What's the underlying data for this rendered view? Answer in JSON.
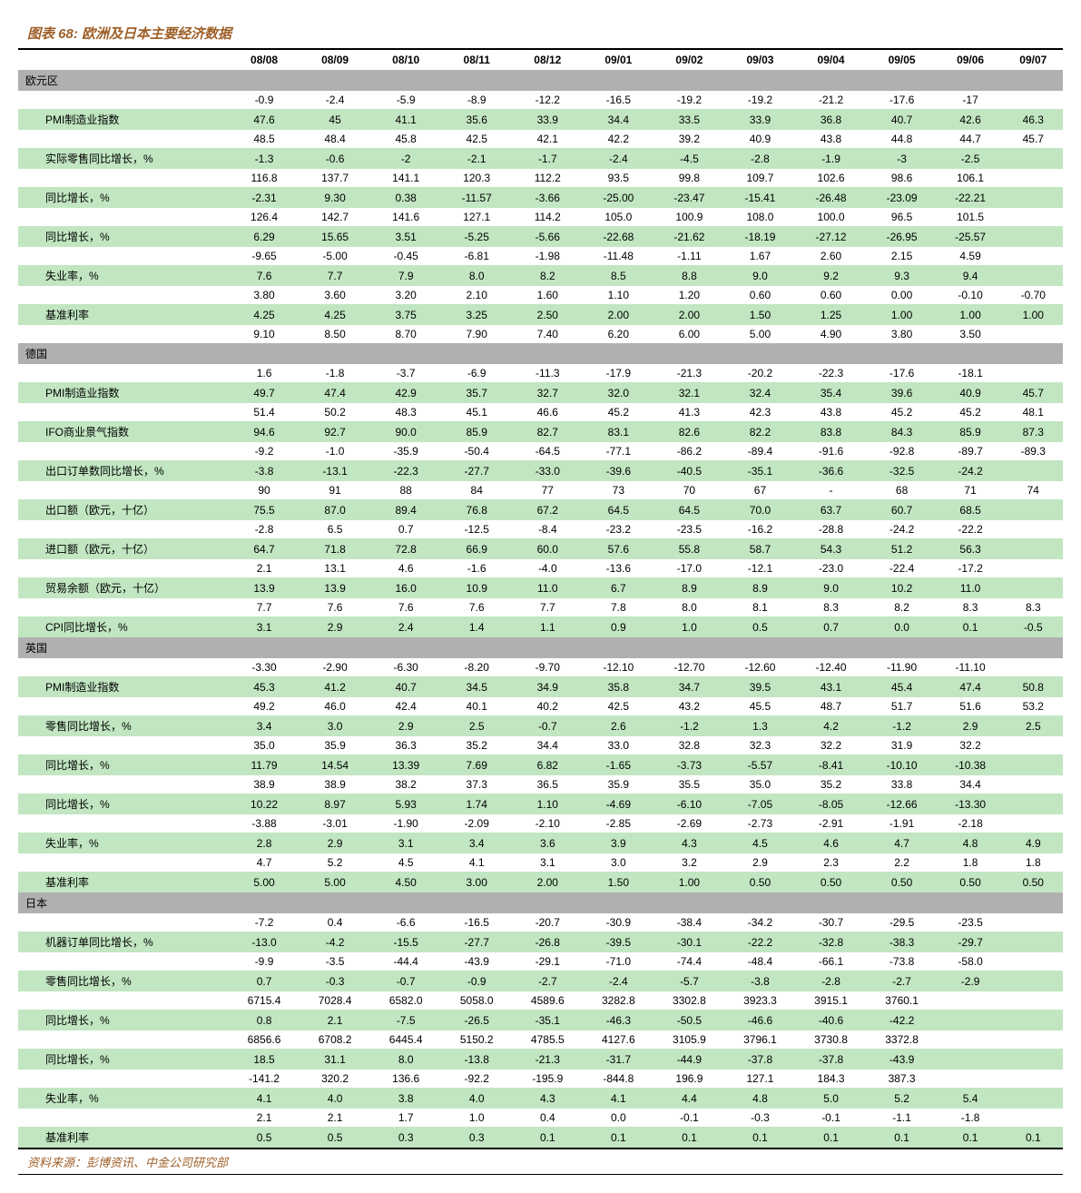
{
  "title": "图表 68: 欧洲及日本主要经济数据",
  "source": "资料来源：彭博资讯、中金公司研究部",
  "colors": {
    "title_color": "#9e5f28",
    "section_bg": "#b0b0b0",
    "green_bg": "#c1e6c1",
    "white_bg": "#ffffff"
  },
  "columns": [
    "08/08",
    "08/09",
    "08/10",
    "08/11",
    "08/12",
    "09/01",
    "09/02",
    "09/03",
    "09/04",
    "09/05",
    "09/06",
    "09/07"
  ],
  "sections": [
    {
      "name": "欧元区",
      "rows": [
        {
          "label": "",
          "values": [
            "-0.9",
            "-2.4",
            "-5.9",
            "-8.9",
            "-12.2",
            "-16.5",
            "-19.2",
            "-19.2",
            "-21.2",
            "-17.6",
            "-17",
            ""
          ],
          "shade": "white"
        },
        {
          "label": "PMI制造业指数",
          "values": [
            "47.6",
            "45",
            "41.1",
            "35.6",
            "33.9",
            "34.4",
            "33.5",
            "33.9",
            "36.8",
            "40.7",
            "42.6",
            "46.3"
          ],
          "shade": "green"
        },
        {
          "label": "",
          "values": [
            "48.5",
            "48.4",
            "45.8",
            "42.5",
            "42.1",
            "42.2",
            "39.2",
            "40.9",
            "43.8",
            "44.8",
            "44.7",
            "45.7"
          ],
          "shade": "white"
        },
        {
          "label": "实际零售同比增长，%",
          "values": [
            "-1.3",
            "-0.6",
            "-2",
            "-2.1",
            "-1.7",
            "-2.4",
            "-4.5",
            "-2.8",
            "-1.9",
            "-3",
            "-2.5",
            ""
          ],
          "shade": "green"
        },
        {
          "label": "",
          "values": [
            "116.8",
            "137.7",
            "141.1",
            "120.3",
            "112.2",
            "93.5",
            "99.8",
            "109.7",
            "102.6",
            "98.6",
            "106.1",
            ""
          ],
          "shade": "white"
        },
        {
          "label": "同比增长，%",
          "values": [
            "-2.31",
            "9.30",
            "0.38",
            "-11.57",
            "-3.66",
            "-25.00",
            "-23.47",
            "-15.41",
            "-26.48",
            "-23.09",
            "-22.21",
            ""
          ],
          "shade": "green"
        },
        {
          "label": "",
          "values": [
            "126.4",
            "142.7",
            "141.6",
            "127.1",
            "114.2",
            "105.0",
            "100.9",
            "108.0",
            "100.0",
            "96.5",
            "101.5",
            ""
          ],
          "shade": "white"
        },
        {
          "label": "同比增长，%",
          "values": [
            "6.29",
            "15.65",
            "3.51",
            "-5.25",
            "-5.66",
            "-22.68",
            "-21.62",
            "-18.19",
            "-27.12",
            "-26.95",
            "-25.57",
            ""
          ],
          "shade": "green"
        },
        {
          "label": "",
          "values": [
            "-9.65",
            "-5.00",
            "-0.45",
            "-6.81",
            "-1.98",
            "-11.48",
            "-1.11",
            "1.67",
            "2.60",
            "2.15",
            "4.59",
            ""
          ],
          "shade": "white"
        },
        {
          "label": "失业率，%",
          "values": [
            "7.6",
            "7.7",
            "7.9",
            "8.0",
            "8.2",
            "8.5",
            "8.8",
            "9.0",
            "9.2",
            "9.3",
            "9.4",
            ""
          ],
          "shade": "green"
        },
        {
          "label": "",
          "values": [
            "3.80",
            "3.60",
            "3.20",
            "2.10",
            "1.60",
            "1.10",
            "1.20",
            "0.60",
            "0.60",
            "0.00",
            "-0.10",
            "-0.70"
          ],
          "shade": "white"
        },
        {
          "label": "基准利率",
          "values": [
            "4.25",
            "4.25",
            "3.75",
            "3.25",
            "2.50",
            "2.00",
            "2.00",
            "1.50",
            "1.25",
            "1.00",
            "1.00",
            "1.00"
          ],
          "shade": "green"
        },
        {
          "label": "",
          "values": [
            "9.10",
            "8.50",
            "8.70",
            "7.90",
            "7.40",
            "6.20",
            "6.00",
            "5.00",
            "4.90",
            "3.80",
            "3.50",
            ""
          ],
          "shade": "white"
        }
      ]
    },
    {
      "name": "德国",
      "rows": [
        {
          "label": "",
          "values": [
            "1.6",
            "-1.8",
            "-3.7",
            "-6.9",
            "-11.3",
            "-17.9",
            "-21.3",
            "-20.2",
            "-22.3",
            "-17.6",
            "-18.1",
            ""
          ],
          "shade": "white"
        },
        {
          "label": "PMI制造业指数",
          "values": [
            "49.7",
            "47.4",
            "42.9",
            "35.7",
            "32.7",
            "32.0",
            "32.1",
            "32.4",
            "35.4",
            "39.6",
            "40.9",
            "45.7"
          ],
          "shade": "green"
        },
        {
          "label": "",
          "values": [
            "51.4",
            "50.2",
            "48.3",
            "45.1",
            "46.6",
            "45.2",
            "41.3",
            "42.3",
            "43.8",
            "45.2",
            "45.2",
            "48.1"
          ],
          "shade": "white"
        },
        {
          "label": "IFO商业景气指数",
          "values": [
            "94.6",
            "92.7",
            "90.0",
            "85.9",
            "82.7",
            "83.1",
            "82.6",
            "82.2",
            "83.8",
            "84.3",
            "85.9",
            "87.3"
          ],
          "shade": "green"
        },
        {
          "label": "",
          "values": [
            "-9.2",
            "-1.0",
            "-35.9",
            "-50.4",
            "-64.5",
            "-77.1",
            "-86.2",
            "-89.4",
            "-91.6",
            "-92.8",
            "-89.7",
            "-89.3"
          ],
          "shade": "white"
        },
        {
          "label": "出口订单数同比增长，%",
          "values": [
            "-3.8",
            "-13.1",
            "-22.3",
            "-27.7",
            "-33.0",
            "-39.6",
            "-40.5",
            "-35.1",
            "-36.6",
            "-32.5",
            "-24.2",
            ""
          ],
          "shade": "green"
        },
        {
          "label": "",
          "values": [
            "90",
            "91",
            "88",
            "84",
            "77",
            "73",
            "70",
            "67",
            "-",
            "68",
            "71",
            "74"
          ],
          "shade": "white"
        },
        {
          "label": "出口额（欧元，十亿）",
          "values": [
            "75.5",
            "87.0",
            "89.4",
            "76.8",
            "67.2",
            "64.5",
            "64.5",
            "70.0",
            "63.7",
            "60.7",
            "68.5",
            ""
          ],
          "shade": "green"
        },
        {
          "label": "",
          "values": [
            "-2.8",
            "6.5",
            "0.7",
            "-12.5",
            "-8.4",
            "-23.2",
            "-23.5",
            "-16.2",
            "-28.8",
            "-24.2",
            "-22.2",
            ""
          ],
          "shade": "white"
        },
        {
          "label": "进口额（欧元，十亿）",
          "values": [
            "64.7",
            "71.8",
            "72.8",
            "66.9",
            "60.0",
            "57.6",
            "55.8",
            "58.7",
            "54.3",
            "51.2",
            "56.3",
            ""
          ],
          "shade": "green"
        },
        {
          "label": "",
          "values": [
            "2.1",
            "13.1",
            "4.6",
            "-1.6",
            "-4.0",
            "-13.6",
            "-17.0",
            "-12.1",
            "-23.0",
            "-22.4",
            "-17.2",
            ""
          ],
          "shade": "white"
        },
        {
          "label": "贸易余额（欧元，十亿）",
          "values": [
            "13.9",
            "13.9",
            "16.0",
            "10.9",
            "11.0",
            "6.7",
            "8.9",
            "8.9",
            "9.0",
            "10.2",
            "11.0",
            ""
          ],
          "shade": "green"
        },
        {
          "label": "",
          "values": [
            "7.7",
            "7.6",
            "7.6",
            "7.6",
            "7.7",
            "7.8",
            "8.0",
            "8.1",
            "8.3",
            "8.2",
            "8.3",
            "8.3"
          ],
          "shade": "white"
        },
        {
          "label": "CPI同比增长，%",
          "values": [
            "3.1",
            "2.9",
            "2.4",
            "1.4",
            "1.1",
            "0.9",
            "1.0",
            "0.5",
            "0.7",
            "0.0",
            "0.1",
            "-0.5"
          ],
          "shade": "green"
        }
      ]
    },
    {
      "name": "英国",
      "rows": [
        {
          "label": "",
          "values": [
            "-3.30",
            "-2.90",
            "-6.30",
            "-8.20",
            "-9.70",
            "-12.10",
            "-12.70",
            "-12.60",
            "-12.40",
            "-11.90",
            "-11.10",
            ""
          ],
          "shade": "white"
        },
        {
          "label": "PMI制造业指数",
          "values": [
            "45.3",
            "41.2",
            "40.7",
            "34.5",
            "34.9",
            "35.8",
            "34.7",
            "39.5",
            "43.1",
            "45.4",
            "47.4",
            "50.8"
          ],
          "shade": "green"
        },
        {
          "label": "",
          "values": [
            "49.2",
            "46.0",
            "42.4",
            "40.1",
            "40.2",
            "42.5",
            "43.2",
            "45.5",
            "48.7",
            "51.7",
            "51.6",
            "53.2"
          ],
          "shade": "white"
        },
        {
          "label": "零售同比增长，%",
          "values": [
            "3.4",
            "3.0",
            "2.9",
            "2.5",
            "-0.7",
            "2.6",
            "-1.2",
            "1.3",
            "4.2",
            "-1.2",
            "2.9",
            "2.5"
          ],
          "shade": "green"
        },
        {
          "label": "",
          "values": [
            "35.0",
            "35.9",
            "36.3",
            "35.2",
            "34.4",
            "33.0",
            "32.8",
            "32.3",
            "32.2",
            "31.9",
            "32.2",
            ""
          ],
          "shade": "white"
        },
        {
          "label": "同比增长，%",
          "values": [
            "11.79",
            "14.54",
            "13.39",
            "7.69",
            "6.82",
            "-1.65",
            "-3.73",
            "-5.57",
            "-8.41",
            "-10.10",
            "-10.38",
            ""
          ],
          "shade": "green"
        },
        {
          "label": "",
          "values": [
            "38.9",
            "38.9",
            "38.2",
            "37.3",
            "36.5",
            "35.9",
            "35.5",
            "35.0",
            "35.2",
            "33.8",
            "34.4",
            ""
          ],
          "shade": "white"
        },
        {
          "label": "同比增长，%",
          "values": [
            "10.22",
            "8.97",
            "5.93",
            "1.74",
            "1.10",
            "-4.69",
            "-6.10",
            "-7.05",
            "-8.05",
            "-12.66",
            "-13.30",
            ""
          ],
          "shade": "green"
        },
        {
          "label": "",
          "values": [
            "-3.88",
            "-3.01",
            "-1.90",
            "-2.09",
            "-2.10",
            "-2.85",
            "-2.69",
            "-2.73",
            "-2.91",
            "-1.91",
            "-2.18",
            ""
          ],
          "shade": "white"
        },
        {
          "label": "失业率，%",
          "values": [
            "2.8",
            "2.9",
            "3.1",
            "3.4",
            "3.6",
            "3.9",
            "4.3",
            "4.5",
            "4.6",
            "4.7",
            "4.8",
            "4.9"
          ],
          "shade": "green"
        },
        {
          "label": "",
          "values": [
            "4.7",
            "5.2",
            "4.5",
            "4.1",
            "3.1",
            "3.0",
            "3.2",
            "2.9",
            "2.3",
            "2.2",
            "1.8",
            "1.8"
          ],
          "shade": "white"
        },
        {
          "label": "基准利率",
          "values": [
            "5.00",
            "5.00",
            "4.50",
            "3.00",
            "2.00",
            "1.50",
            "1.00",
            "0.50",
            "0.50",
            "0.50",
            "0.50",
            "0.50"
          ],
          "shade": "green"
        }
      ]
    },
    {
      "name": "日本",
      "rows": [
        {
          "label": "",
          "values": [
            "-7.2",
            "0.4",
            "-6.6",
            "-16.5",
            "-20.7",
            "-30.9",
            "-38.4",
            "-34.2",
            "-30.7",
            "-29.5",
            "-23.5",
            ""
          ],
          "shade": "white"
        },
        {
          "label": "机器订单同比增长，%",
          "values": [
            "-13.0",
            "-4.2",
            "-15.5",
            "-27.7",
            "-26.8",
            "-39.5",
            "-30.1",
            "-22.2",
            "-32.8",
            "-38.3",
            "-29.7",
            ""
          ],
          "shade": "green"
        },
        {
          "label": "",
          "values": [
            "-9.9",
            "-3.5",
            "-44.4",
            "-43.9",
            "-29.1",
            "-71.0",
            "-74.4",
            "-48.4",
            "-66.1",
            "-73.8",
            "-58.0",
            ""
          ],
          "shade": "white"
        },
        {
          "label": "零售同比增长，%",
          "values": [
            "0.7",
            "-0.3",
            "-0.7",
            "-0.9",
            "-2.7",
            "-2.4",
            "-5.7",
            "-3.8",
            "-2.8",
            "-2.7",
            "-2.9",
            ""
          ],
          "shade": "green"
        },
        {
          "label": "",
          "values": [
            "6715.4",
            "7028.4",
            "6582.0",
            "5058.0",
            "4589.6",
            "3282.8",
            "3302.8",
            "3923.3",
            "3915.1",
            "3760.1",
            "",
            ""
          ],
          "shade": "white"
        },
        {
          "label": "同比增长，%",
          "values": [
            "0.8",
            "2.1",
            "-7.5",
            "-26.5",
            "-35.1",
            "-46.3",
            "-50.5",
            "-46.6",
            "-40.6",
            "-42.2",
            "",
            ""
          ],
          "shade": "green"
        },
        {
          "label": "",
          "values": [
            "6856.6",
            "6708.2",
            "6445.4",
            "5150.2",
            "4785.5",
            "4127.6",
            "3105.9",
            "3796.1",
            "3730.8",
            "3372.8",
            "",
            ""
          ],
          "shade": "white"
        },
        {
          "label": "同比增长，%",
          "values": [
            "18.5",
            "31.1",
            "8.0",
            "-13.8",
            "-21.3",
            "-31.7",
            "-44.9",
            "-37.8",
            "-37.8",
            "-43.9",
            "",
            ""
          ],
          "shade": "green"
        },
        {
          "label": "",
          "values": [
            "-141.2",
            "320.2",
            "136.6",
            "-92.2",
            "-195.9",
            "-844.8",
            "196.9",
            "127.1",
            "184.3",
            "387.3",
            "",
            ""
          ],
          "shade": "white"
        },
        {
          "label": "失业率，%",
          "values": [
            "4.1",
            "4.0",
            "3.8",
            "4.0",
            "4.3",
            "4.1",
            "4.4",
            "4.8",
            "5.0",
            "5.2",
            "5.4",
            ""
          ],
          "shade": "green"
        },
        {
          "label": "",
          "values": [
            "2.1",
            "2.1",
            "1.7",
            "1.0",
            "0.4",
            "0.0",
            "-0.1",
            "-0.3",
            "-0.1",
            "-1.1",
            "-1.8",
            ""
          ],
          "shade": "white"
        },
        {
          "label": "基准利率",
          "values": [
            "0.5",
            "0.5",
            "0.3",
            "0.3",
            "0.1",
            "0.1",
            "0.1",
            "0.1",
            "0.1",
            "0.1",
            "0.1",
            "0.1"
          ],
          "shade": "green"
        }
      ]
    }
  ]
}
